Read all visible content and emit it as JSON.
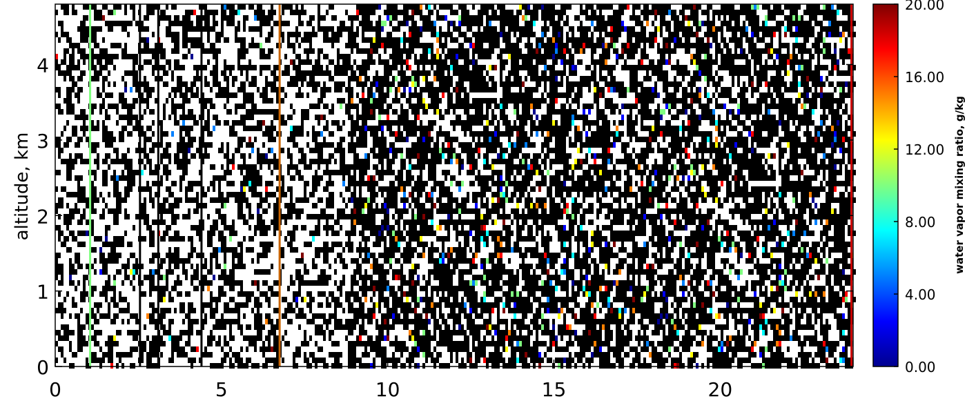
{
  "chart_data": {
    "type": "heatmap",
    "title": "",
    "xlabel": "",
    "ylabel": "altitude,  km",
    "xlim": [
      0,
      24
    ],
    "ylim": [
      0,
      4.8
    ],
    "x_ticks": [
      "0",
      "5",
      "10",
      "15",
      "20"
    ],
    "x_tick_values": [
      0,
      5,
      10,
      15,
      20
    ],
    "y_ticks": [
      "0",
      "1",
      "2",
      "3",
      "4"
    ],
    "y_tick_values": [
      0,
      1,
      2,
      3,
      4
    ],
    "colorbar": {
      "label": "water  vapor  mixing  ratio,  g/kg",
      "range": [
        0,
        20
      ],
      "ticks": [
        "0.00",
        "4.00",
        "8.00",
        "12.00",
        "16.00",
        "20.00"
      ],
      "tick_values": [
        0,
        4,
        8,
        12,
        16,
        20
      ],
      "colormap": [
        "#00008f",
        "#0000ff",
        "#0080ff",
        "#00ffff",
        "#80ff80",
        "#ffff00",
        "#ff8000",
        "#ff0000",
        "#800000"
      ]
    },
    "background_color": "#ffffff",
    "missing_color": "#000000",
    "grid": false,
    "notable_vertical_lines": [
      {
        "x": 1.05,
        "color": "#7fff7f"
      },
      {
        "x": 2.55,
        "color": "#000000"
      },
      {
        "x": 3.1,
        "color": "#000000"
      },
      {
        "x": 4.4,
        "color": "#000000"
      },
      {
        "x": 6.75,
        "color": "#c86400"
      },
      {
        "x": 23.95,
        "color": "#cc0000"
      }
    ],
    "data_density_regions": [
      {
        "x_start": 0,
        "x_end": 8.8,
        "missing_fraction": 0.33,
        "colored_fraction": 0.01
      },
      {
        "x_start": 8.8,
        "x_end": 24,
        "missing_fraction": 0.5,
        "colored_fraction": 0.06
      }
    ]
  }
}
